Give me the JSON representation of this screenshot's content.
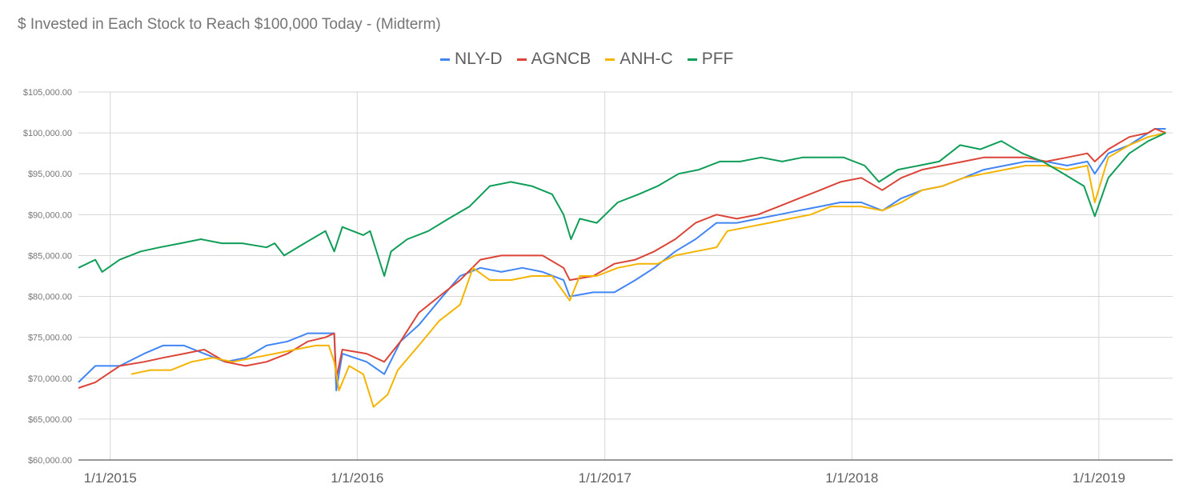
{
  "chart_data": {
    "type": "line",
    "title": "$ Invested in Each Stock to Reach $100,000 Today - (Midterm)",
    "xlabel": "",
    "ylabel": "",
    "ylim": [
      60000,
      105000
    ],
    "xlim": [
      "2014-11-15",
      "2019-04-20"
    ],
    "y_ticks": [
      "$60,000.00",
      "$65,000.00",
      "$70,000.00",
      "$75,000.00",
      "$80,000.00",
      "$85,000.00",
      "$90,000.00",
      "$95,000.00",
      "$100,000.00",
      "$105,000.00"
    ],
    "y_tick_values": [
      60000,
      65000,
      70000,
      75000,
      80000,
      85000,
      90000,
      95000,
      100000,
      105000
    ],
    "x_ticks": [
      "1/1/2015",
      "1/1/2016",
      "1/1/2017",
      "1/1/2018",
      "1/1/2019"
    ],
    "x_tick_values": [
      "2015-01-01",
      "2016-01-01",
      "2017-01-01",
      "2018-01-01",
      "2019-01-01"
    ],
    "legend_position": "top",
    "grid": true,
    "series": [
      {
        "name": "NLY-D",
        "color": "#4285f4",
        "points": [
          [
            "2014-11-15",
            69500
          ],
          [
            "2014-12-10",
            71500
          ],
          [
            "2015-01-15",
            71500
          ],
          [
            "2015-02-20",
            73000
          ],
          [
            "2015-03-20",
            74000
          ],
          [
            "2015-04-20",
            74000
          ],
          [
            "2015-05-20",
            73000
          ],
          [
            "2015-06-20",
            72000
          ],
          [
            "2015-07-20",
            72500
          ],
          [
            "2015-08-20",
            74000
          ],
          [
            "2015-09-20",
            74500
          ],
          [
            "2015-10-20",
            75500
          ],
          [
            "2015-11-15",
            75500
          ],
          [
            "2015-11-28",
            75500
          ],
          [
            "2015-12-01",
            68500
          ],
          [
            "2015-12-10",
            73000
          ],
          [
            "2016-01-15",
            72000
          ],
          [
            "2016-02-10",
            70500
          ],
          [
            "2016-03-05",
            74500
          ],
          [
            "2016-04-01",
            76500
          ],
          [
            "2016-05-01",
            79500
          ],
          [
            "2016-06-01",
            82500
          ],
          [
            "2016-07-01",
            83500
          ],
          [
            "2016-08-01",
            83000
          ],
          [
            "2016-09-01",
            83500
          ],
          [
            "2016-10-01",
            83000
          ],
          [
            "2016-11-01",
            82000
          ],
          [
            "2016-11-10",
            80000
          ],
          [
            "2016-12-15",
            80500
          ],
          [
            "2017-01-15",
            80500
          ],
          [
            "2017-02-15",
            82000
          ],
          [
            "2017-03-15",
            83500
          ],
          [
            "2017-04-15",
            85500
          ],
          [
            "2017-05-15",
            87000
          ],
          [
            "2017-06-15",
            89000
          ],
          [
            "2017-07-15",
            89000
          ],
          [
            "2017-08-15",
            89500
          ],
          [
            "2017-09-15",
            90000
          ],
          [
            "2017-10-15",
            90500
          ],
          [
            "2017-11-15",
            91000
          ],
          [
            "2017-12-15",
            91500
          ],
          [
            "2018-01-15",
            91500
          ],
          [
            "2018-02-15",
            90500
          ],
          [
            "2018-03-15",
            92000
          ],
          [
            "2018-04-15",
            93000
          ],
          [
            "2018-05-15",
            93500
          ],
          [
            "2018-06-15",
            94500
          ],
          [
            "2018-07-15",
            95500
          ],
          [
            "2018-08-15",
            96000
          ],
          [
            "2018-09-15",
            96500
          ],
          [
            "2018-10-15",
            96500
          ],
          [
            "2018-11-15",
            96000
          ],
          [
            "2018-12-15",
            96500
          ],
          [
            "2018-12-26",
            95000
          ],
          [
            "2019-01-15",
            97500
          ],
          [
            "2019-02-15",
            98500
          ],
          [
            "2019-03-15",
            100000
          ],
          [
            "2019-03-25",
            100500
          ],
          [
            "2019-04-10",
            100500
          ]
        ]
      },
      {
        "name": "AGNCB",
        "color": "#db4437",
        "points": [
          [
            "2014-11-15",
            68800
          ],
          [
            "2014-12-10",
            69500
          ],
          [
            "2015-01-15",
            71500
          ],
          [
            "2015-02-20",
            72000
          ],
          [
            "2015-03-20",
            72500
          ],
          [
            "2015-04-20",
            73000
          ],
          [
            "2015-05-20",
            73500
          ],
          [
            "2015-06-20",
            72000
          ],
          [
            "2015-07-20",
            71500
          ],
          [
            "2015-08-20",
            72000
          ],
          [
            "2015-09-20",
            73000
          ],
          [
            "2015-10-20",
            74500
          ],
          [
            "2015-11-15",
            75000
          ],
          [
            "2015-11-28",
            75500
          ],
          [
            "2015-12-01",
            70000
          ],
          [
            "2015-12-10",
            73500
          ],
          [
            "2016-01-15",
            73000
          ],
          [
            "2016-02-10",
            72000
          ],
          [
            "2016-03-05",
            74500
          ],
          [
            "2016-04-01",
            78000
          ],
          [
            "2016-05-01",
            80000
          ],
          [
            "2016-06-01",
            82000
          ],
          [
            "2016-07-01",
            84500
          ],
          [
            "2016-08-01",
            85000
          ],
          [
            "2016-09-01",
            85000
          ],
          [
            "2016-10-01",
            85000
          ],
          [
            "2016-11-01",
            83500
          ],
          [
            "2016-11-10",
            82000
          ],
          [
            "2016-12-15",
            82500
          ],
          [
            "2017-01-15",
            84000
          ],
          [
            "2017-02-15",
            84500
          ],
          [
            "2017-03-15",
            85500
          ],
          [
            "2017-04-15",
            87000
          ],
          [
            "2017-05-15",
            89000
          ],
          [
            "2017-06-15",
            90000
          ],
          [
            "2017-07-15",
            89500
          ],
          [
            "2017-08-15",
            90000
          ],
          [
            "2017-09-15",
            91000
          ],
          [
            "2017-10-15",
            92000
          ],
          [
            "2017-11-15",
            93000
          ],
          [
            "2017-12-15",
            94000
          ],
          [
            "2018-01-15",
            94500
          ],
          [
            "2018-02-15",
            93000
          ],
          [
            "2018-03-15",
            94500
          ],
          [
            "2018-04-15",
            95500
          ],
          [
            "2018-05-15",
            96000
          ],
          [
            "2018-06-15",
            96500
          ],
          [
            "2018-07-15",
            97000
          ],
          [
            "2018-08-15",
            97000
          ],
          [
            "2018-09-15",
            97000
          ],
          [
            "2018-10-15",
            96500
          ],
          [
            "2018-11-15",
            97000
          ],
          [
            "2018-12-15",
            97500
          ],
          [
            "2018-12-26",
            96500
          ],
          [
            "2019-01-15",
            98000
          ],
          [
            "2019-02-15",
            99500
          ],
          [
            "2019-03-15",
            100000
          ],
          [
            "2019-03-25",
            100500
          ],
          [
            "2019-04-10",
            100000
          ]
        ]
      },
      {
        "name": "ANH-C",
        "color": "#f4b400",
        "points": [
          [
            "2015-02-01",
            70500
          ],
          [
            "2015-03-01",
            71000
          ],
          [
            "2015-04-01",
            71000
          ],
          [
            "2015-05-01",
            72000
          ],
          [
            "2015-06-01",
            72500
          ],
          [
            "2015-07-01",
            72000
          ],
          [
            "2015-08-01",
            72500
          ],
          [
            "2015-09-01",
            73000
          ],
          [
            "2015-10-01",
            73500
          ],
          [
            "2015-11-01",
            74000
          ],
          [
            "2015-11-20",
            74000
          ],
          [
            "2015-11-28",
            72000
          ],
          [
            "2015-12-05",
            68500
          ],
          [
            "2015-12-20",
            71500
          ],
          [
            "2016-01-10",
            70500
          ],
          [
            "2016-01-25",
            66500
          ],
          [
            "2016-02-15",
            68000
          ],
          [
            "2016-03-01",
            71000
          ],
          [
            "2016-04-01",
            74000
          ],
          [
            "2016-05-01",
            77000
          ],
          [
            "2016-06-01",
            79000
          ],
          [
            "2016-06-20",
            83500
          ],
          [
            "2016-07-15",
            82000
          ],
          [
            "2016-08-15",
            82000
          ],
          [
            "2016-09-15",
            82500
          ],
          [
            "2016-10-15",
            82500
          ],
          [
            "2016-11-10",
            79500
          ],
          [
            "2016-11-25",
            82500
          ],
          [
            "2016-12-20",
            82500
          ],
          [
            "2017-01-20",
            83500
          ],
          [
            "2017-02-20",
            84000
          ],
          [
            "2017-03-20",
            84000
          ],
          [
            "2017-04-15",
            85000
          ],
          [
            "2017-05-15",
            85500
          ],
          [
            "2017-06-15",
            86000
          ],
          [
            "2017-07-01",
            88000
          ],
          [
            "2017-08-01",
            88500
          ],
          [
            "2017-09-01",
            89000
          ],
          [
            "2017-10-01",
            89500
          ],
          [
            "2017-11-01",
            90000
          ],
          [
            "2017-12-01",
            91000
          ],
          [
            "2018-01-15",
            91000
          ],
          [
            "2018-02-15",
            90500
          ],
          [
            "2018-03-15",
            91500
          ],
          [
            "2018-04-15",
            93000
          ],
          [
            "2018-05-15",
            93500
          ],
          [
            "2018-06-15",
            94500
          ],
          [
            "2018-07-15",
            95000
          ],
          [
            "2018-08-15",
            95500
          ],
          [
            "2018-09-15",
            96000
          ],
          [
            "2018-10-15",
            96000
          ],
          [
            "2018-11-15",
            95500
          ],
          [
            "2018-12-15",
            96000
          ],
          [
            "2018-12-26",
            91500
          ],
          [
            "2019-01-15",
            97000
          ],
          [
            "2019-02-15",
            98500
          ],
          [
            "2019-03-15",
            99500
          ],
          [
            "2019-04-10",
            100000
          ]
        ]
      },
      {
        "name": "PFF",
        "color": "#0f9d58",
        "points": [
          [
            "2014-11-15",
            83500
          ],
          [
            "2014-12-10",
            84500
          ],
          [
            "2014-12-20",
            83000
          ],
          [
            "2015-01-15",
            84500
          ],
          [
            "2015-02-15",
            85500
          ],
          [
            "2015-03-15",
            86000
          ],
          [
            "2015-04-15",
            86500
          ],
          [
            "2015-05-15",
            87000
          ],
          [
            "2015-06-15",
            86500
          ],
          [
            "2015-07-15",
            86500
          ],
          [
            "2015-08-20",
            86000
          ],
          [
            "2015-09-01",
            86500
          ],
          [
            "2015-09-15",
            85000
          ],
          [
            "2015-10-15",
            86500
          ],
          [
            "2015-11-15",
            88000
          ],
          [
            "2015-11-28",
            85500
          ],
          [
            "2015-12-10",
            88500
          ],
          [
            "2016-01-10",
            87500
          ],
          [
            "2016-01-20",
            88000
          ],
          [
            "2016-02-10",
            82500
          ],
          [
            "2016-02-20",
            85500
          ],
          [
            "2016-03-15",
            87000
          ],
          [
            "2016-04-15",
            88000
          ],
          [
            "2016-05-15",
            89500
          ],
          [
            "2016-06-15",
            91000
          ],
          [
            "2016-07-15",
            93500
          ],
          [
            "2016-08-15",
            94000
          ],
          [
            "2016-09-15",
            93500
          ],
          [
            "2016-10-15",
            92500
          ],
          [
            "2016-11-01",
            90000
          ],
          [
            "2016-11-12",
            87000
          ],
          [
            "2016-11-25",
            89500
          ],
          [
            "2016-12-20",
            89000
          ],
          [
            "2017-01-20",
            91500
          ],
          [
            "2017-02-20",
            92500
          ],
          [
            "2017-03-20",
            93500
          ],
          [
            "2017-04-20",
            95000
          ],
          [
            "2017-05-20",
            95500
          ],
          [
            "2017-06-20",
            96500
          ],
          [
            "2017-07-20",
            96500
          ],
          [
            "2017-08-20",
            97000
          ],
          [
            "2017-09-20",
            96500
          ],
          [
            "2017-10-20",
            97000
          ],
          [
            "2017-11-20",
            97000
          ],
          [
            "2017-12-20",
            97000
          ],
          [
            "2018-01-20",
            96000
          ],
          [
            "2018-02-10",
            94000
          ],
          [
            "2018-03-10",
            95500
          ],
          [
            "2018-04-10",
            96000
          ],
          [
            "2018-05-10",
            96500
          ],
          [
            "2018-06-10",
            98500
          ],
          [
            "2018-07-10",
            98000
          ],
          [
            "2018-08-10",
            99000
          ],
          [
            "2018-09-10",
            97500
          ],
          [
            "2018-10-10",
            96500
          ],
          [
            "2018-11-10",
            95000
          ],
          [
            "2018-12-10",
            93500
          ],
          [
            "2018-12-26",
            89800
          ],
          [
            "2019-01-15",
            94500
          ],
          [
            "2019-02-15",
            97500
          ],
          [
            "2019-03-15",
            99000
          ],
          [
            "2019-04-10",
            100000
          ]
        ]
      }
    ]
  }
}
